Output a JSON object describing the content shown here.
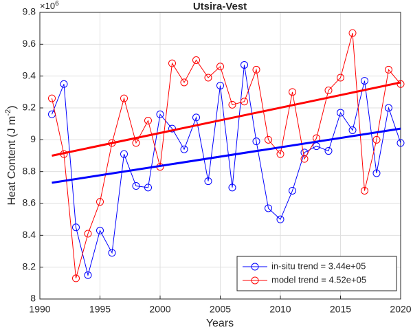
{
  "chart_data": {
    "type": "line",
    "title": "Utsira-Vest",
    "xlabel": "Years",
    "ylabel": [
      "Heat Content (J m",
      "-2",
      ")"
    ],
    "y_exponent": [
      "×10",
      "6"
    ],
    "x": [
      1991,
      1992,
      1993,
      1994,
      1995,
      1996,
      1997,
      1998,
      1999,
      2000,
      2001,
      2002,
      2003,
      2004,
      2005,
      2006,
      2007,
      2008,
      2009,
      2010,
      2011,
      2012,
      2013,
      2014,
      2015,
      2016,
      2017,
      2018,
      2019,
      2020
    ],
    "trend_x": [
      1991,
      2020
    ],
    "series": [
      {
        "name": "in-situ trend = 3.44e+05",
        "color": "#0000ff",
        "values": [
          9.16,
          9.35,
          8.45,
          8.15,
          8.43,
          8.29,
          8.91,
          8.71,
          8.7,
          9.16,
          9.07,
          8.94,
          9.14,
          8.74,
          9.34,
          8.7,
          9.47,
          8.99,
          8.57,
          8.5,
          8.68,
          8.92,
          8.96,
          8.93,
          9.17,
          9.06,
          9.37,
          8.79,
          9.2,
          8.98
        ],
        "trend": [
          8.73,
          9.07
        ]
      },
      {
        "name": "model trend = 4.52e+05",
        "color": "#ff0000",
        "values": [
          9.26,
          8.91,
          8.13,
          8.41,
          8.61,
          8.98,
          9.26,
          8.98,
          9.12,
          8.83,
          9.48,
          9.36,
          9.5,
          9.39,
          9.46,
          9.22,
          9.24,
          9.44,
          9.0,
          8.91,
          9.3,
          8.88,
          9.01,
          9.31,
          9.39,
          9.67,
          8.68,
          9.0,
          9.44,
          9.35
        ],
        "trend": [
          8.9,
          9.36
        ]
      }
    ],
    "xlim": [
      1990,
      2020
    ],
    "xticks": [
      1990,
      1995,
      2000,
      2005,
      2010,
      2015,
      2020
    ],
    "ylim": [
      8,
      9.8
    ],
    "yticks": [
      8,
      8.2,
      8.4,
      8.6,
      8.8,
      9,
      9.2,
      9.4,
      9.6,
      9.8
    ],
    "grid": true,
    "legend": "lower right"
  }
}
